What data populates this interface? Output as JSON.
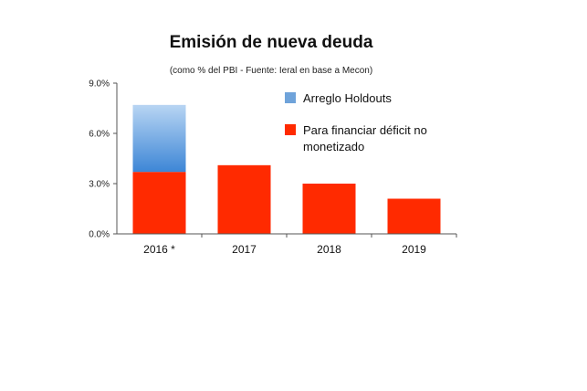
{
  "chart_data": {
    "type": "bar",
    "stacked": true,
    "title": "Emisión de nueva deuda",
    "subtitle": "(como % del PBI - Fuente: Ieral en base a Mecon)",
    "categories": [
      "2016 *",
      "2017",
      "2018",
      "2019"
    ],
    "series": [
      {
        "name": "Para financiar déficit no monetizado",
        "values": [
          3.7,
          4.1,
          3.0,
          2.1
        ],
        "color": "#ff2a00"
      },
      {
        "name": "Arreglo Holdouts",
        "values": [
          4.0,
          0,
          0,
          0
        ],
        "color": "#6fa3da"
      }
    ],
    "yticks": [
      "0.0%",
      "3.0%",
      "6.0%",
      "9.0%"
    ],
    "ylim": [
      0,
      9
    ],
    "grid": false,
    "legend_position": "top-right"
  }
}
